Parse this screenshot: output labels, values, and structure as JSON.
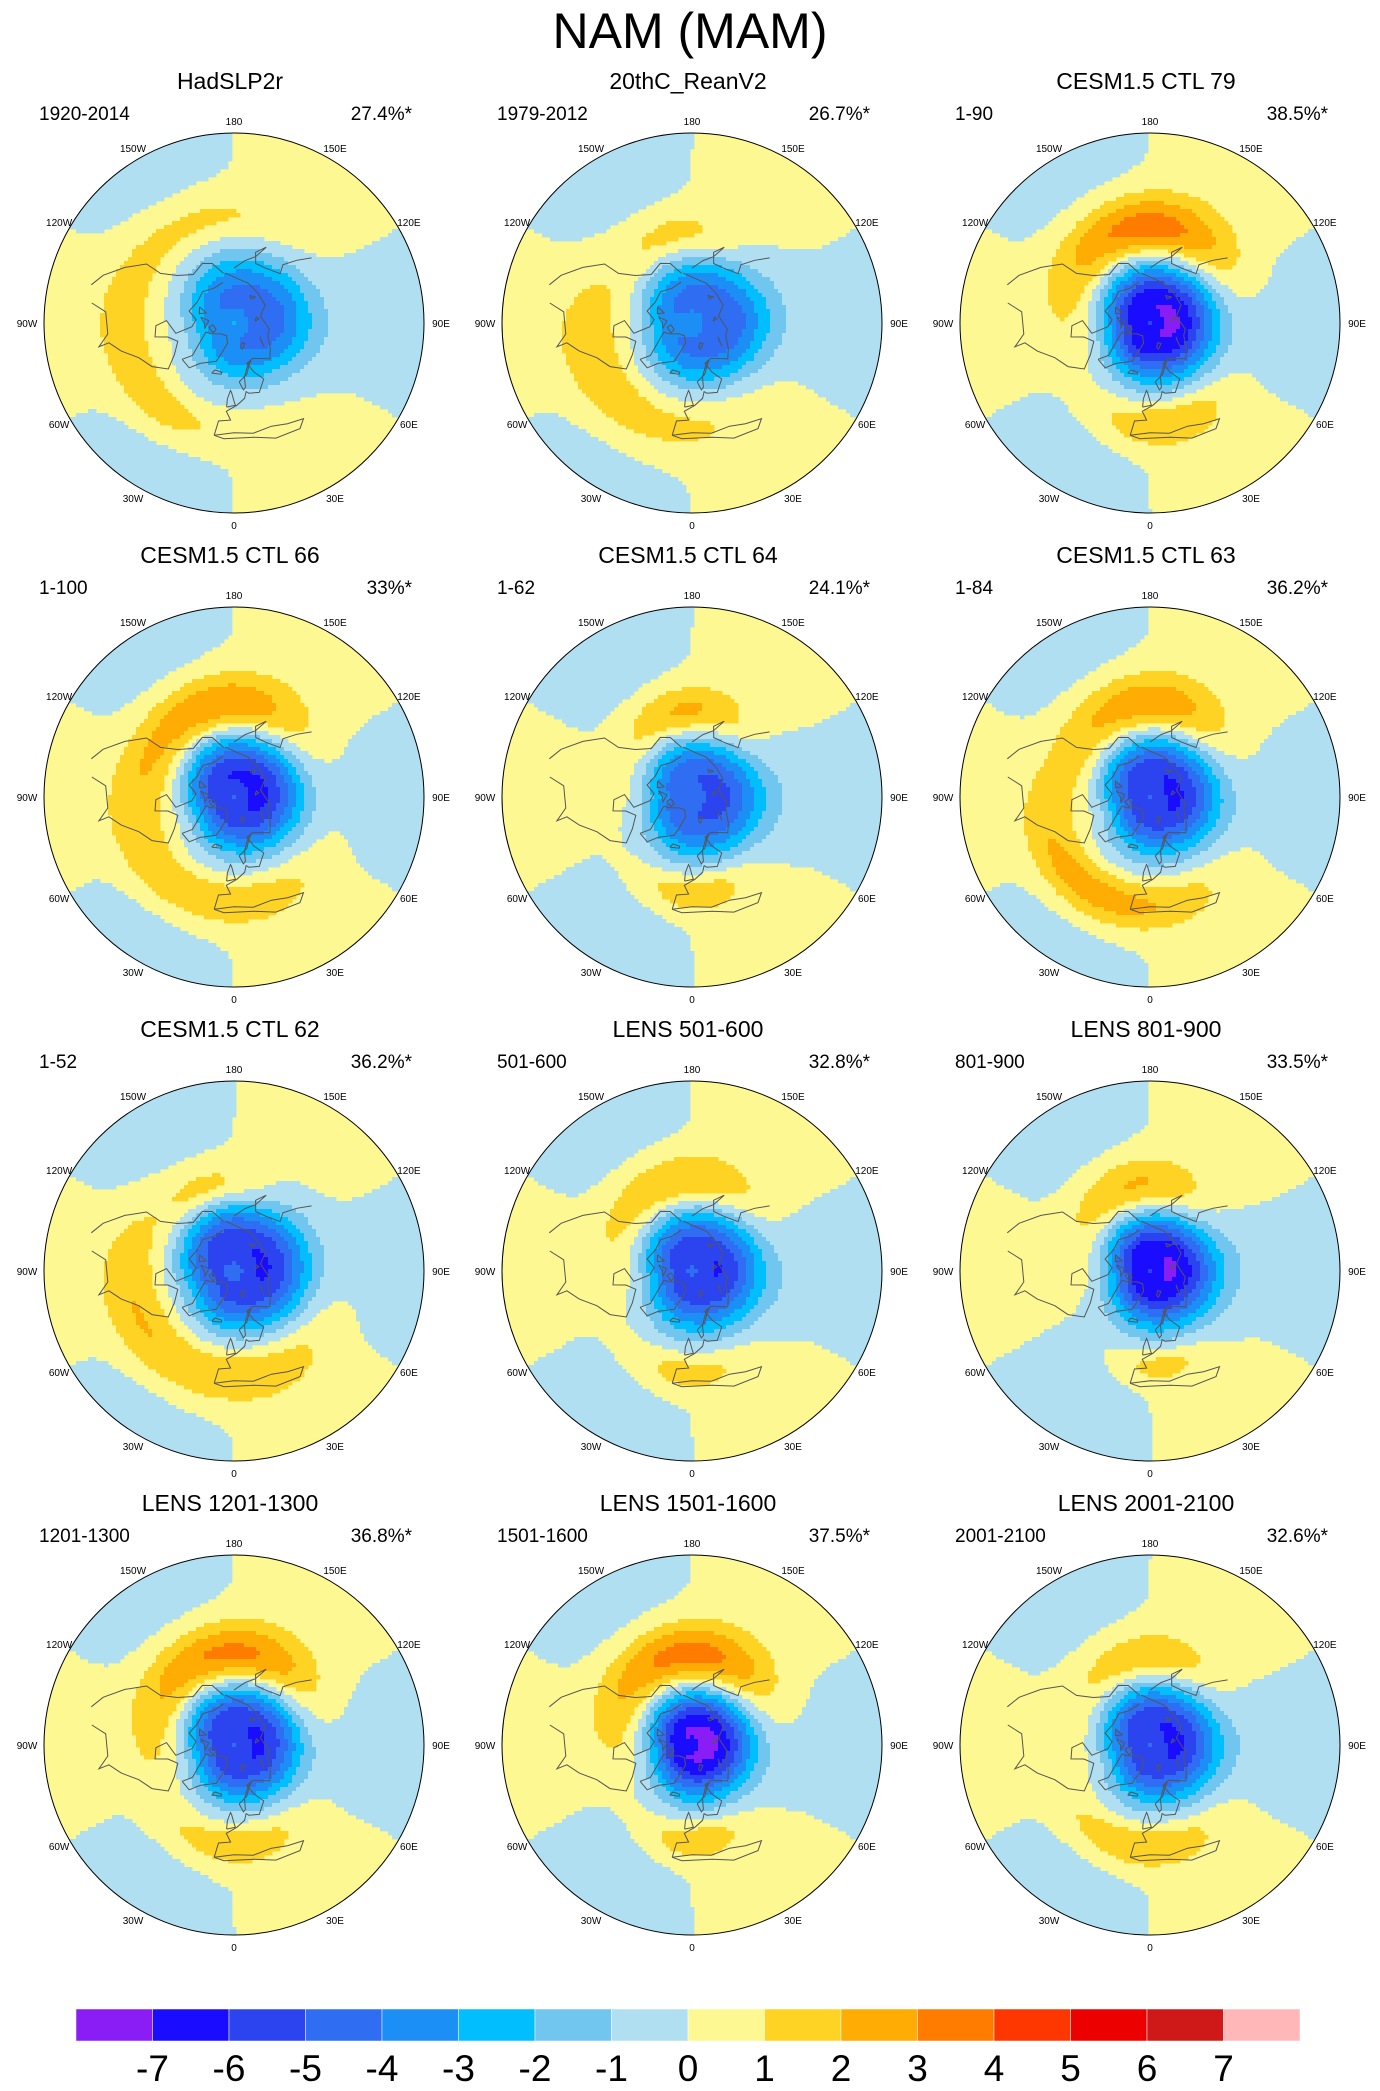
{
  "title": "NAM (MAM)",
  "lon_labels": [
    "180",
    "150E",
    "120E",
    "90E",
    "60E",
    "30E",
    "0",
    "30W",
    "60W",
    "90W",
    "120W",
    "150W"
  ],
  "panels": [
    {
      "title": "HadSLP2r",
      "period": "1920-2014",
      "variance": "27.4%*",
      "max_neg": -4,
      "max_pos": 1,
      "centers": [
        {
          "lon": 110,
          "lat": 75,
          "amp": -4.6,
          "rlon": 42,
          "rlat": 16
        },
        {
          "lon": 200,
          "lat": 40,
          "amp": 1.1,
          "rlon": 30,
          "rlat": 9
        },
        {
          "lon": -40,
          "lat": 38,
          "amp": 1.4,
          "rlon": 22,
          "rlat": 8
        },
        {
          "lon": -100,
          "lat": 35,
          "amp": 0.8,
          "rlon": 40,
          "rlat": 10
        }
      ]
    },
    {
      "title": "20thC_ReanV2",
      "period": "1979-2012",
      "variance": "26.7%*",
      "max_neg": -4,
      "max_pos": 2,
      "centers": [
        {
          "lon": 100,
          "lat": 75,
          "amp": -4.8,
          "rlon": 45,
          "rlat": 16
        },
        {
          "lon": -170,
          "lat": 48,
          "amp": 1.6,
          "rlon": 20,
          "rlat": 9
        },
        {
          "lon": -45,
          "lat": 40,
          "amp": 1.8,
          "rlon": 40,
          "rlat": 11
        }
      ]
    },
    {
      "title": "CESM1.5 CTL 79",
      "period": "1-90",
      "variance": "38.5%*",
      "max_neg": -7,
      "max_pos": 4,
      "centers": [
        {
          "lon": 100,
          "lat": 80,
          "amp": -7.2,
          "rlon": 50,
          "rlat": 16
        },
        {
          "lon": -175,
          "lat": 45,
          "amp": 3.8,
          "rlon": 32,
          "rlat": 11
        },
        {
          "lon": 5,
          "lat": 42,
          "amp": 2.0,
          "rlon": 22,
          "rlat": 8
        }
      ]
    },
    {
      "title": "CESM1.5 CTL 66",
      "period": "1-100",
      "variance": "33%*",
      "max_neg": -6,
      "max_pos": 3,
      "centers": [
        {
          "lon": 120,
          "lat": 78,
          "amp": -6.3,
          "rlon": 46,
          "rlat": 16
        },
        {
          "lon": -170,
          "lat": 47,
          "amp": 3.3,
          "rlon": 32,
          "rlat": 11
        },
        {
          "lon": -30,
          "lat": 40,
          "amp": 2.0,
          "rlon": 42,
          "rlat": 9
        }
      ]
    },
    {
      "title": "CESM1.5 CTL 64",
      "period": "1-62",
      "variance": "24.1%*",
      "max_neg": -5,
      "max_pos": 2,
      "centers": [
        {
          "lon": 90,
          "lat": 78,
          "amp": -5.3,
          "rlon": 46,
          "rlat": 16
        },
        {
          "lon": -175,
          "lat": 50,
          "amp": 2.6,
          "rlon": 22,
          "rlat": 9
        },
        {
          "lon": 0,
          "lat": 45,
          "amp": 1.9,
          "rlon": 18,
          "rlat": 7
        }
      ]
    },
    {
      "title": "CESM1.5 CTL 63",
      "period": "1-84",
      "variance": "36.2%*",
      "max_neg": -6,
      "max_pos": 3,
      "centers": [
        {
          "lon": 110,
          "lat": 78,
          "amp": -6.2,
          "rlon": 46,
          "rlat": 16
        },
        {
          "lon": -175,
          "lat": 47,
          "amp": 3.2,
          "rlon": 30,
          "rlat": 11
        },
        {
          "lon": -30,
          "lat": 38,
          "amp": 2.8,
          "rlon": 32,
          "rlat": 9
        }
      ]
    },
    {
      "title": "CESM1.5 CTL 62",
      "period": "1-52",
      "variance": "36.2%*",
      "max_neg": -6,
      "max_pos": 2,
      "centers": [
        {
          "lon": 120,
          "lat": 76,
          "amp": -6.1,
          "rlon": 50,
          "rlat": 16
        },
        {
          "lon": -165,
          "lat": 50,
          "amp": 1.8,
          "rlon": 18,
          "rlat": 8
        },
        {
          "lon": -35,
          "lat": 40,
          "amp": 2.2,
          "rlon": 50,
          "rlat": 10
        }
      ]
    },
    {
      "title": "LENS 501-600",
      "period": "501-600",
      "variance": "32.8%*",
      "max_neg": -6,
      "max_pos": 2,
      "centers": [
        {
          "lon": 100,
          "lat": 78,
          "amp": -6.0,
          "rlon": 48,
          "rlat": 16
        },
        {
          "lon": -170,
          "lat": 48,
          "amp": 2.4,
          "rlon": 30,
          "rlat": 10
        },
        {
          "lon": -5,
          "lat": 42,
          "amp": 1.6,
          "rlon": 18,
          "rlat": 7
        }
      ]
    },
    {
      "title": "LENS 801-900",
      "period": "801-900",
      "variance": "33.5%*",
      "max_neg": -7,
      "max_pos": 2,
      "centers": [
        {
          "lon": 100,
          "lat": 80,
          "amp": -7.1,
          "rlon": 44,
          "rlat": 16
        },
        {
          "lon": -170,
          "lat": 50,
          "amp": 2.6,
          "rlon": 24,
          "rlat": 10
        },
        {
          "lon": 5,
          "lat": 45,
          "amp": 1.5,
          "rlon": 14,
          "rlat": 6
        }
      ]
    },
    {
      "title": "LENS 1201-1300",
      "period": "1201-1300",
      "variance": "36.8%*",
      "max_neg": -6,
      "max_pos": 3,
      "centers": [
        {
          "lon": 110,
          "lat": 78,
          "amp": -6.2,
          "rlon": 48,
          "rlat": 16
        },
        {
          "lon": -175,
          "lat": 48,
          "amp": 3.8,
          "rlon": 34,
          "rlat": 11
        },
        {
          "lon": -5,
          "lat": 43,
          "amp": 1.8,
          "rlon": 24,
          "rlat": 8
        }
      ]
    },
    {
      "title": "LENS 1501-1600",
      "period": "1501-1600",
      "variance": "37.5%*",
      "max_neg": -7,
      "max_pos": 3,
      "centers": [
        {
          "lon": 100,
          "lat": 82,
          "amp": -7.3,
          "rlon": 46,
          "rlat": 16
        },
        {
          "lon": -175,
          "lat": 48,
          "amp": 3.8,
          "rlon": 32,
          "rlat": 11
        },
        {
          "lon": 0,
          "lat": 45,
          "amp": 1.8,
          "rlon": 16,
          "rlat": 7
        }
      ]
    },
    {
      "title": "LENS 2001-2100",
      "period": "2001-2100",
      "variance": "32.6%*",
      "max_neg": -6,
      "max_pos": 2,
      "centers": [
        {
          "lon": 110,
          "lat": 78,
          "amp": -6.2,
          "rlon": 46,
          "rlat": 16
        },
        {
          "lon": -175,
          "lat": 50,
          "amp": 2.3,
          "rlon": 28,
          "rlat": 10
        },
        {
          "lon": -10,
          "lat": 42,
          "amp": 2.0,
          "rlon": 26,
          "rlat": 8
        }
      ]
    }
  ],
  "colorbar": {
    "labels": [
      "-7",
      "-6",
      "-5",
      "-4",
      "-3",
      "-2",
      "-1",
      "0",
      "1",
      "2",
      "3",
      "4",
      "5",
      "6",
      "7"
    ],
    "colors": [
      "#8a1cf5",
      "#1a0cff",
      "#2c44f0",
      "#2f6df2",
      "#1c8ff7",
      "#00beff",
      "#71c6f0",
      "#b0dff2",
      "#fdf891",
      "#fed324",
      "#ffac04",
      "#ff7c01",
      "#fe3600",
      "#ec0000",
      "#cf1818",
      "#ffb8b7"
    ]
  }
}
